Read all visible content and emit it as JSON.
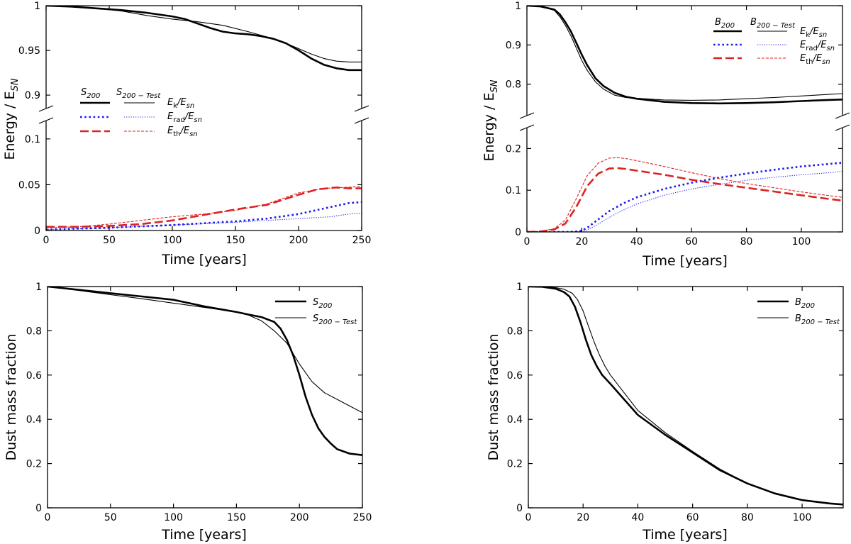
{
  "chart_data": [
    {
      "id": "energy_S200",
      "type": "line",
      "title": "",
      "xlabel": "Time [years]",
      "ylabel": "Energy / E_SN",
      "xlim": [
        0,
        250
      ],
      "xticks": [
        0,
        50,
        100,
        150,
        200,
        250
      ],
      "broken_y_axis": true,
      "upper_ylim": [
        0.885,
        1.0
      ],
      "upper_yticks": [
        0.9,
        0.95,
        1
      ],
      "upper_ytick_labels": [
        "0.9",
        "0.95",
        "1"
      ],
      "lower_ylim": [
        0,
        0.12
      ],
      "lower_yticks": [
        0,
        0.05,
        0.1
      ],
      "lower_ytick_labels": [
        "0",
        "0.05",
        "0.1"
      ],
      "legend": {
        "placement": "center-left",
        "col_headers": [
          "S_200",
          "S_200-Test"
        ],
        "rows": [
          "E_k/E_sn",
          "E_rad/E_sn",
          "E_th/E_sn"
        ]
      },
      "series": [
        {
          "name": "S200 E_k/E_sn",
          "panel": "upper",
          "color": "#000000",
          "style": "solid",
          "width": 2.6,
          "x": [
            0,
            20,
            40,
            60,
            80,
            100,
            110,
            120,
            130,
            140,
            150,
            160,
            170,
            180,
            190,
            200,
            210,
            220,
            230,
            240,
            250
          ],
          "y": [
            1.0,
            0.999,
            0.997,
            0.995,
            0.992,
            0.988,
            0.985,
            0.98,
            0.975,
            0.971,
            0.969,
            0.968,
            0.966,
            0.963,
            0.958,
            0.95,
            0.941,
            0.934,
            0.93,
            0.928,
            0.928
          ]
        },
        {
          "name": "S200-Test E_k/E_sn",
          "panel": "upper",
          "color": "#000000",
          "style": "solid",
          "width": 1.1,
          "x": [
            0,
            20,
            40,
            60,
            80,
            100,
            120,
            140,
            160,
            180,
            190,
            200,
            210,
            220,
            230,
            240,
            250
          ],
          "y": [
            1.0,
            0.999,
            0.997,
            0.994,
            0.989,
            0.985,
            0.982,
            0.978,
            0.971,
            0.963,
            0.958,
            0.952,
            0.946,
            0.941,
            0.938,
            0.937,
            0.937
          ]
        },
        {
          "name": "S200 E_rad/E_sn",
          "panel": "lower",
          "color": "#1a1aee",
          "style": "dotted",
          "width": 2.6,
          "x": [
            0,
            50,
            100,
            150,
            175,
            200,
            210,
            220,
            230,
            240,
            250
          ],
          "y": [
            0.001,
            0.003,
            0.006,
            0.01,
            0.013,
            0.018,
            0.021,
            0.024,
            0.027,
            0.03,
            0.031
          ]
        },
        {
          "name": "S200-Test E_rad/E_sn",
          "panel": "lower",
          "color": "#1a1aee",
          "style": "dotted",
          "width": 1.1,
          "x": [
            0,
            50,
            100,
            150,
            200,
            225,
            240,
            250
          ],
          "y": [
            0.001,
            0.003,
            0.006,
            0.009,
            0.013,
            0.015,
            0.018,
            0.019
          ]
        },
        {
          "name": "S200 E_th/E_sn",
          "panel": "lower",
          "color": "#dd2222",
          "style": "dashed",
          "width": 2.6,
          "x": [
            0,
            25,
            50,
            75,
            100,
            125,
            150,
            175,
            200,
            215,
            230,
            240,
            250
          ],
          "y": [
            0.004,
            0.004,
            0.005,
            0.007,
            0.011,
            0.017,
            0.023,
            0.028,
            0.039,
            0.045,
            0.047,
            0.046,
            0.046
          ]
        },
        {
          "name": "S200-Test E_th/E_sn",
          "panel": "lower",
          "color": "#dd2222",
          "style": "dashed",
          "width": 1.1,
          "x": [
            0,
            25,
            50,
            75,
            100,
            125,
            150,
            175,
            200,
            220,
            235,
            250
          ],
          "y": [
            0.003,
            0.004,
            0.007,
            0.011,
            0.015,
            0.018,
            0.022,
            0.029,
            0.041,
            0.046,
            0.047,
            0.048
          ]
        }
      ]
    },
    {
      "id": "energy_B200",
      "type": "line",
      "title": "",
      "xlabel": "Time [years]",
      "ylabel": "Energy / E_SN",
      "xlim": [
        0,
        115
      ],
      "xticks": [
        0,
        20,
        40,
        60,
        80,
        100
      ],
      "broken_y_axis": true,
      "upper_ylim": [
        0.72,
        1.0
      ],
      "upper_yticks": [
        0.8,
        0.9,
        1
      ],
      "upper_ytick_labels": [
        "0.8",
        "0.9",
        "1"
      ],
      "lower_ylim": [
        0,
        0.25
      ],
      "lower_yticks": [
        0,
        0.1,
        0.2
      ],
      "lower_ytick_labels": [
        "0",
        "0.1",
        "0.2"
      ],
      "legend": {
        "placement": "top-right",
        "col_headers": [
          "B_200",
          "B_200-Test"
        ],
        "rows": [
          "E_k/E_sn",
          "E_rad/E_sn",
          "E_th/E_sn"
        ]
      },
      "series": [
        {
          "name": "B200 E_k/E_sn",
          "panel": "upper",
          "color": "#000000",
          "style": "solid",
          "width": 2.6,
          "x": [
            0,
            5,
            10,
            12,
            14,
            16,
            18,
            20,
            22,
            25,
            28,
            32,
            36,
            40,
            50,
            60,
            70,
            80,
            90,
            100,
            110,
            115
          ],
          "y": [
            1.0,
            0.998,
            0.99,
            0.978,
            0.958,
            0.935,
            0.905,
            0.875,
            0.848,
            0.815,
            0.795,
            0.778,
            0.768,
            0.763,
            0.755,
            0.752,
            0.751,
            0.752,
            0.754,
            0.757,
            0.76,
            0.761
          ]
        },
        {
          "name": "B200-Test E_k/E_sn",
          "panel": "upper",
          "color": "#000000",
          "style": "solid",
          "width": 1.1,
          "x": [
            0,
            5,
            10,
            12,
            14,
            16,
            18,
            20,
            22,
            25,
            28,
            32,
            36,
            40,
            50,
            60,
            70,
            80,
            90,
            100,
            110,
            115
          ],
          "y": [
            1.0,
            0.998,
            0.988,
            0.972,
            0.95,
            0.924,
            0.892,
            0.86,
            0.835,
            0.806,
            0.787,
            0.772,
            0.766,
            0.764,
            0.76,
            0.759,
            0.76,
            0.763,
            0.766,
            0.77,
            0.774,
            0.776
          ]
        },
        {
          "name": "B200 E_rad/E_sn",
          "panel": "lower",
          "color": "#1a1aee",
          "style": "dotted",
          "width": 2.6,
          "x": [
            0,
            15,
            18,
            20,
            22,
            25,
            30,
            35,
            40,
            50,
            60,
            70,
            80,
            90,
            100,
            110,
            115
          ],
          "y": [
            0,
            0.0,
            0.001,
            0.003,
            0.01,
            0.025,
            0.05,
            0.068,
            0.083,
            0.103,
            0.118,
            0.13,
            0.14,
            0.149,
            0.157,
            0.163,
            0.166
          ]
        },
        {
          "name": "B200-Test E_rad/E_sn",
          "panel": "lower",
          "color": "#1a1aee",
          "style": "dotted",
          "width": 1.1,
          "x": [
            0,
            15,
            20,
            22,
            25,
            30,
            35,
            40,
            50,
            60,
            70,
            80,
            90,
            100,
            110,
            115
          ],
          "y": [
            0,
            0.0,
            0.001,
            0.005,
            0.015,
            0.035,
            0.052,
            0.067,
            0.088,
            0.103,
            0.114,
            0.124,
            0.131,
            0.137,
            0.142,
            0.145
          ]
        },
        {
          "name": "B200 E_th/E_sn",
          "panel": "lower",
          "color": "#dd2222",
          "style": "dashed",
          "width": 2.6,
          "x": [
            0,
            5,
            10,
            14,
            18,
            22,
            26,
            30,
            33,
            36,
            40,
            50,
            60,
            70,
            80,
            90,
            100,
            110,
            115
          ],
          "y": [
            0,
            0.001,
            0.006,
            0.02,
            0.06,
            0.11,
            0.14,
            0.152,
            0.153,
            0.151,
            0.147,
            0.137,
            0.125,
            0.115,
            0.106,
            0.097,
            0.088,
            0.079,
            0.075
          ]
        },
        {
          "name": "B200-Test E_th/E_sn",
          "panel": "lower",
          "color": "#dd2222",
          "style": "dashed",
          "width": 1.1,
          "x": [
            0,
            5,
            10,
            14,
            18,
            22,
            26,
            30,
            33,
            36,
            40,
            50,
            60,
            70,
            80,
            90,
            100,
            110,
            115
          ],
          "y": [
            0,
            0.001,
            0.008,
            0.028,
            0.08,
            0.135,
            0.165,
            0.177,
            0.178,
            0.176,
            0.171,
            0.157,
            0.142,
            0.128,
            0.116,
            0.106,
            0.096,
            0.087,
            0.083
          ]
        }
      ]
    },
    {
      "id": "dust_S200",
      "type": "line",
      "title": "",
      "xlabel": "Time [years]",
      "ylabel": "Dust mass fraction",
      "xlim": [
        0,
        250
      ],
      "xticks": [
        0,
        50,
        100,
        150,
        200,
        250
      ],
      "ylim": [
        0,
        1
      ],
      "yticks": [
        0,
        0.2,
        0.4,
        0.6,
        0.8,
        1
      ],
      "ytick_labels": [
        "0",
        "0.2",
        "0.4",
        "0.6",
        "0.8",
        "1"
      ],
      "legend": {
        "placement": "top-right",
        "entries": [
          "S_200",
          "S_200-Test"
        ]
      },
      "series": [
        {
          "name": "S200",
          "color": "#000000",
          "style": "solid",
          "width": 2.6,
          "x": [
            0,
            25,
            50,
            75,
            100,
            125,
            140,
            150,
            160,
            170,
            180,
            185,
            190,
            195,
            200,
            205,
            210,
            215,
            220,
            225,
            230,
            240,
            250
          ],
          "y": [
            1.0,
            0.985,
            0.97,
            0.955,
            0.94,
            0.91,
            0.895,
            0.885,
            0.873,
            0.862,
            0.84,
            0.81,
            0.76,
            0.69,
            0.6,
            0.5,
            0.42,
            0.36,
            0.32,
            0.29,
            0.265,
            0.245,
            0.238
          ]
        },
        {
          "name": "S200-Test",
          "color": "#000000",
          "style": "solid",
          "width": 1.1,
          "x": [
            0,
            25,
            50,
            75,
            100,
            125,
            150,
            160,
            170,
            180,
            190,
            200,
            210,
            220,
            230,
            240,
            250
          ],
          "y": [
            1.0,
            0.982,
            0.963,
            0.945,
            0.925,
            0.905,
            0.885,
            0.87,
            0.845,
            0.8,
            0.745,
            0.65,
            0.57,
            0.52,
            0.49,
            0.46,
            0.43
          ]
        }
      ]
    },
    {
      "id": "dust_B200",
      "type": "line",
      "title": "",
      "xlabel": "Time [years]",
      "ylabel": "Dust mass fraction",
      "xlim": [
        0,
        115
      ],
      "xticks": [
        0,
        20,
        40,
        60,
        80,
        100
      ],
      "ylim": [
        0,
        1
      ],
      "yticks": [
        0,
        0.2,
        0.4,
        0.6,
        0.8,
        1
      ],
      "ytick_labels": [
        "0",
        "0.2",
        "0.4",
        "0.6",
        "0.8",
        "1"
      ],
      "legend": {
        "placement": "top-right",
        "entries": [
          "B_200",
          "B_200-Test"
        ]
      },
      "series": [
        {
          "name": "B200",
          "color": "#000000",
          "style": "solid",
          "width": 2.6,
          "x": [
            0,
            5,
            10,
            13,
            15,
            17,
            19,
            21,
            23,
            25,
            27,
            30,
            35,
            40,
            50,
            60,
            70,
            80,
            90,
            100,
            110,
            115
          ],
          "y": [
            1.0,
            0.999,
            0.99,
            0.975,
            0.955,
            0.91,
            0.84,
            0.76,
            0.69,
            0.64,
            0.6,
            0.56,
            0.49,
            0.42,
            0.33,
            0.25,
            0.17,
            0.11,
            0.065,
            0.035,
            0.02,
            0.015
          ]
        },
        {
          "name": "B200-Test",
          "color": "#000000",
          "style": "solid",
          "width": 1.1,
          "x": [
            0,
            5,
            10,
            13,
            16,
            18,
            20,
            22,
            24,
            26,
            28,
            30,
            35,
            40,
            50,
            60,
            70,
            80,
            90,
            100,
            110,
            115
          ],
          "y": [
            1.0,
            0.999,
            0.995,
            0.988,
            0.97,
            0.94,
            0.89,
            0.82,
            0.75,
            0.69,
            0.64,
            0.6,
            0.52,
            0.44,
            0.34,
            0.255,
            0.175,
            0.11,
            0.065,
            0.035,
            0.02,
            0.015
          ]
        }
      ]
    }
  ]
}
